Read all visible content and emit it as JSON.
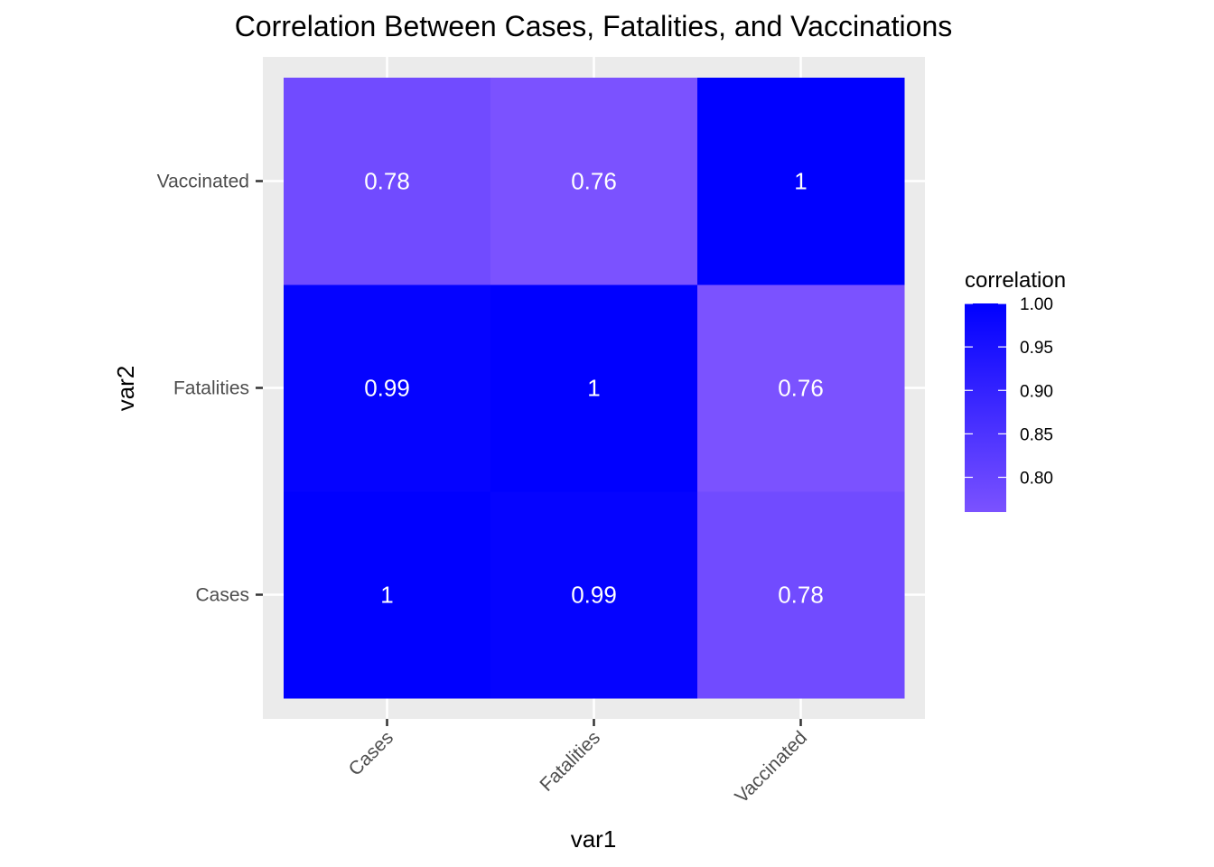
{
  "chart_data": {
    "type": "heatmap",
    "title": "Correlation Between Cases, Fatalities, and Vaccinations",
    "xlabel": "var1",
    "ylabel": "var2",
    "x_categories": [
      "Cases",
      "Fatalities",
      "Vaccinated"
    ],
    "y_categories": [
      "Cases",
      "Fatalities",
      "Vaccinated"
    ],
    "values": [
      [
        1.0,
        0.99,
        0.78
      ],
      [
        0.99,
        1.0,
        0.76
      ],
      [
        0.78,
        0.76,
        1.0
      ]
    ],
    "cell_labels": [
      [
        "1",
        "0.99",
        "0.78"
      ],
      [
        "0.99",
        "1",
        "0.76"
      ],
      [
        "0.78",
        "0.76",
        "1"
      ]
    ],
    "legend": {
      "title": "correlation",
      "ticks": [
        "1.00",
        "0.95",
        "0.90",
        "0.85",
        "0.80"
      ],
      "tick_values": [
        1.0,
        0.95,
        0.9,
        0.85,
        0.8
      ],
      "range": [
        0.76,
        1.0
      ],
      "position": "right"
    },
    "color_scale": {
      "low": "#7b52ff",
      "high": "#0000ff"
    },
    "panel_background": "#ebebeb",
    "grid_color": "#ffffff",
    "grid": true
  }
}
